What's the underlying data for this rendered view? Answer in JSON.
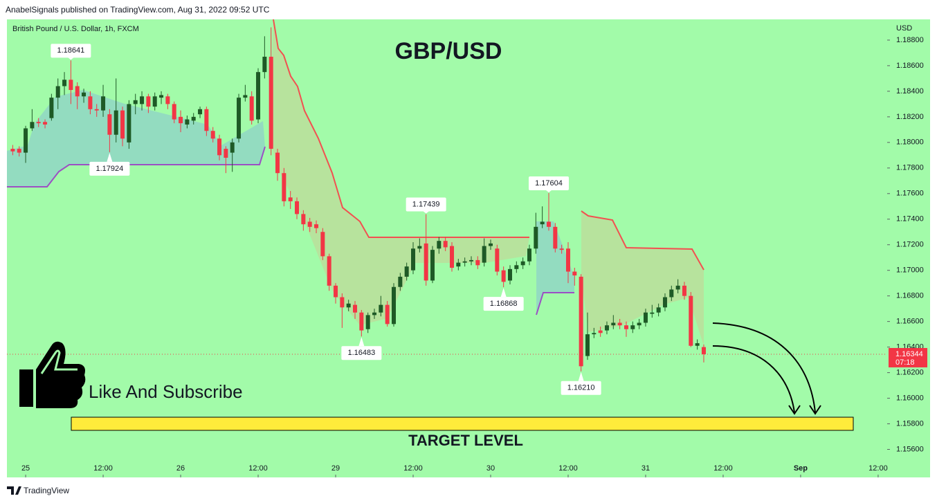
{
  "header": "AnabelSignals published on TradingView.com, Aug 31, 2022 09:52 UTC",
  "footer": "TradingView",
  "chart_data": {
    "type": "candlestick",
    "symbol": "British Pound / U.S. Dollar, 1h, FXCM",
    "currency": "USD",
    "title": "GBP/USD",
    "x": [
      -2,
      -1,
      0,
      1,
      2,
      3,
      4,
      5,
      6,
      7,
      8,
      9,
      10,
      11,
      12,
      13,
      14,
      15,
      16,
      17,
      18,
      19,
      20,
      21,
      22,
      23,
      24,
      25,
      26,
      27,
      28,
      29,
      30,
      31,
      32,
      33,
      34,
      35,
      36,
      37,
      38,
      39,
      40,
      41,
      42,
      43,
      44,
      45,
      46,
      47,
      48,
      49,
      50,
      51,
      52,
      53,
      54,
      55,
      56,
      57,
      58,
      59,
      60,
      61,
      62,
      63,
      64,
      65,
      66,
      67,
      68,
      69,
      70,
      71,
      72,
      73,
      74,
      75,
      76,
      77,
      78,
      79,
      80,
      81,
      82,
      83,
      84,
      85,
      86,
      87,
      88,
      89,
      90,
      91,
      92,
      93,
      94,
      95,
      96,
      97,
      98,
      99,
      100,
      101,
      102,
      103,
      104,
      105
    ],
    "open": [
      1.1795,
      1.1795,
      1.1792,
      1.1811,
      1.1816,
      1.1816,
      1.1819,
      1.1835,
      1.1844,
      1.1849,
      1.1844,
      1.1836,
      1.1836,
      1.1826,
      1.1825,
      1.1822,
      1.1806,
      1.1825,
      1.18,
      1.183,
      1.183,
      1.1836,
      1.1828,
      1.1835,
      1.1836,
      1.183,
      1.182,
      1.1814,
      1.1817,
      1.1822,
      1.1826,
      1.1809,
      1.1803,
      1.1795,
      1.1792,
      1.1803,
      1.1835,
      1.1836,
      1.1818,
      1.1855,
      1.1867,
      1.1792,
      1.1776,
      1.1757,
      1.1754,
      1.1744,
      1.1738,
      1.1736,
      1.173,
      1.1711,
      1.1688,
      1.1679,
      1.1671,
      1.1673,
      1.1667,
      1.1654,
      1.1665,
      1.1667,
      1.1673,
      1.1658,
      1.1687,
      1.1695,
      1.17,
      1.1717,
      1.1721,
      1.1692,
      1.1717,
      1.1723,
      1.1719,
      1.1703,
      1.1706,
      1.1707,
      1.1708,
      1.1706,
      1.1719,
      1.1717,
      1.17,
      1.1692,
      1.1701,
      1.1704,
      1.1707,
      1.1717,
      1.1736,
      1.1738,
      1.1734,
      1.1717,
      1.1717,
      1.1699,
      1.1695,
      1.1633,
      1.165,
      1.1653,
      1.1653,
      1.1657,
      1.1659,
      1.1657,
      1.1654,
      1.1657,
      1.1659,
      1.1666,
      1.1667,
      1.1671,
      1.1679,
      1.1685,
      1.1688,
      1.168,
      1.1641,
      1.164
    ],
    "high": [
      1.1798,
      1.1797,
      1.1813,
      1.1826,
      1.1819,
      1.1818,
      1.1838,
      1.185,
      1.1855,
      1.18641,
      1.1847,
      1.1842,
      1.184,
      1.183,
      1.1845,
      1.1826,
      1.185,
      1.1828,
      1.1833,
      1.1838,
      1.184,
      1.1838,
      1.1839,
      1.184,
      1.1838,
      1.1832,
      1.1825,
      1.1821,
      1.1823,
      1.1828,
      1.1828,
      1.1812,
      1.1806,
      1.1797,
      1.1803,
      1.1838,
      1.1845,
      1.184,
      1.1858,
      1.1883,
      1.189,
      1.1795,
      1.178,
      1.1762,
      1.1757,
      1.1747,
      1.1741,
      1.1739,
      1.1733,
      1.1713,
      1.169,
      1.1682,
      1.1677,
      1.1676,
      1.1669,
      1.1667,
      1.167,
      1.168,
      1.1676,
      1.169,
      1.1698,
      1.1706,
      1.1722,
      1.1725,
      1.17439,
      1.1719,
      1.1726,
      1.1726,
      1.1722,
      1.1709,
      1.171,
      1.1711,
      1.1711,
      1.1725,
      1.1724,
      1.172,
      1.1703,
      1.1704,
      1.1707,
      1.171,
      1.172,
      1.1745,
      1.175,
      1.17604,
      1.1737,
      1.172,
      1.1722,
      1.1702,
      1.1697,
      1.1667,
      1.1655,
      1.1656,
      1.166,
      1.1665,
      1.1662,
      1.166,
      1.166,
      1.1662,
      1.167,
      1.1673,
      1.1674,
      1.1682,
      1.1688,
      1.1693,
      1.1691,
      1.1683,
      1.1646,
      1.1642
    ],
    "low": [
      1.179,
      1.1789,
      1.1784,
      1.1809,
      1.1812,
      1.1811,
      1.1817,
      1.1826,
      1.1837,
      1.183,
      1.1826,
      1.1831,
      1.1822,
      1.182,
      1.182,
      1.17924,
      1.18,
      1.1797,
      1.1795,
      1.1822,
      1.1825,
      1.1823,
      1.1825,
      1.183,
      1.1826,
      1.1815,
      1.1808,
      1.1811,
      1.1814,
      1.1819,
      1.1805,
      1.18,
      1.1786,
      1.1776,
      1.1777,
      1.18,
      1.1832,
      1.1814,
      1.1815,
      1.185,
      1.179,
      1.177,
      1.175,
      1.1748,
      1.174,
      1.1731,
      1.173,
      1.1729,
      1.1708,
      1.1684,
      1.1674,
      1.1655,
      1.1668,
      1.1662,
      1.16483,
      1.1651,
      1.1662,
      1.1664,
      1.1656,
      1.1656,
      1.1684,
      1.1692,
      1.1697,
      1.1714,
      1.1688,
      1.169,
      1.1713,
      1.1715,
      1.1699,
      1.17,
      1.1703,
      1.1704,
      1.1701,
      1.1703,
      1.1716,
      1.1696,
      1.16868,
      1.1689,
      1.1698,
      1.1701,
      1.1704,
      1.1713,
      1.1733,
      1.1731,
      1.1714,
      1.1713,
      1.169,
      1.1688,
      1.1621,
      1.163,
      1.1647,
      1.1648,
      1.165,
      1.1654,
      1.1654,
      1.1648,
      1.1651,
      1.1654,
      1.1656,
      1.1663,
      1.1664,
      1.1668,
      1.1676,
      1.1682,
      1.1677,
      1.164,
      1.1638,
      1.1628
    ],
    "close": [
      1.1793,
      1.1792,
      1.1811,
      1.1816,
      1.1815,
      1.1814,
      1.1835,
      1.1844,
      1.1849,
      1.1841,
      1.1836,
      1.1839,
      1.1826,
      1.1825,
      1.1836,
      1.1806,
      1.1825,
      1.1803,
      1.183,
      1.1833,
      1.1836,
      1.1828,
      1.1836,
      1.1837,
      1.183,
      1.1818,
      1.1815,
      1.1818,
      1.182,
      1.1826,
      1.1809,
      1.1803,
      1.179,
      1.1788,
      1.18,
      1.1835,
      1.1837,
      1.1817,
      1.1855,
      1.1867,
      1.1795,
      1.1776,
      1.1754,
      1.1754,
      1.1744,
      1.1736,
      1.1734,
      1.1733,
      1.1711,
      1.1688,
      1.1679,
      1.1671,
      1.1674,
      1.1667,
      1.1653,
      1.1665,
      1.1667,
      1.1673,
      1.1658,
      1.1687,
      1.1695,
      1.1703,
      1.1717,
      1.1719,
      1.1692,
      1.1716,
      1.1723,
      1.1718,
      1.1702,
      1.1706,
      1.1707,
      1.1708,
      1.1704,
      1.1719,
      1.1721,
      1.1699,
      1.1691,
      1.1701,
      1.1704,
      1.1707,
      1.1717,
      1.1734,
      1.1738,
      1.1734,
      1.1717,
      1.1716,
      1.1699,
      1.1696,
      1.1625,
      1.165,
      1.1651,
      1.1651,
      1.1657,
      1.1659,
      1.1657,
      1.1654,
      1.1657,
      1.1659,
      1.1667,
      1.1667,
      1.1671,
      1.1679,
      1.1685,
      1.1688,
      1.168,
      1.1641,
      1.1643,
      1.16344
    ],
    "up_color": "#1e5a26",
    "down_color": "#f23645",
    "last_price": 1.16344,
    "countdown": "07:18",
    "annotations": [
      {
        "x": 7,
        "value": 1.18641,
        "side": "above"
      },
      {
        "x": 13,
        "value": 1.17924,
        "side": "below"
      },
      {
        "x": 52,
        "value": 1.16483,
        "side": "below"
      },
      {
        "x": 62,
        "value": 1.17439,
        "side": "above"
      },
      {
        "x": 74,
        "value": 1.16868,
        "side": "below"
      },
      {
        "x": 81,
        "value": 1.17604,
        "side": "above"
      },
      {
        "x": 86,
        "value": 1.1621,
        "label": "1.16210",
        "side": "below"
      }
    ],
    "xlim": [
      -2.9,
      133.4
    ],
    "xticks": [
      {
        "value": 0,
        "label": "25"
      },
      {
        "value": 12,
        "label": "12:00"
      },
      {
        "value": 24,
        "label": "26"
      },
      {
        "value": 36,
        "label": "12:00"
      },
      {
        "value": 48,
        "label": "29"
      },
      {
        "value": 60,
        "label": "12:00"
      },
      {
        "value": 72,
        "label": "30"
      },
      {
        "value": 84,
        "label": "12:00"
      },
      {
        "value": 96,
        "label": "31"
      },
      {
        "value": 108,
        "label": "12:00"
      },
      {
        "value": 120,
        "label": "Sep"
      },
      {
        "value": 132,
        "label": "12:00"
      }
    ],
    "ylim": [
      1.15381,
      1.18962
    ],
    "yticks": [
      {
        "value": 1.188,
        "label": "1.18800"
      },
      {
        "value": 1.186,
        "label": "1.18600"
      },
      {
        "value": 1.184,
        "label": "1.18400"
      },
      {
        "value": 1.182,
        "label": "1.18200"
      },
      {
        "value": 1.18,
        "label": "1.18000"
      },
      {
        "value": 1.178,
        "label": "1.17800"
      },
      {
        "value": 1.176,
        "label": "1.17600"
      },
      {
        "value": 1.174,
        "label": "1.17400"
      },
      {
        "value": 1.172,
        "label": "1.17200"
      },
      {
        "value": 1.17,
        "label": "1.17000"
      },
      {
        "value": 1.168,
        "label": "1.16800"
      },
      {
        "value": 1.166,
        "label": "1.16600"
      },
      {
        "value": 1.164,
        "label": "1.16400"
      },
      {
        "value": 1.162,
        "label": "1.16200"
      },
      {
        "value": 1.16,
        "label": "1.16000"
      },
      {
        "value": 1.158,
        "label": "1.15800"
      },
      {
        "value": 1.156,
        "label": "1.15600"
      }
    ],
    "cta": "Like And Subscribe",
    "target_label": "TARGET LEVEL"
  }
}
